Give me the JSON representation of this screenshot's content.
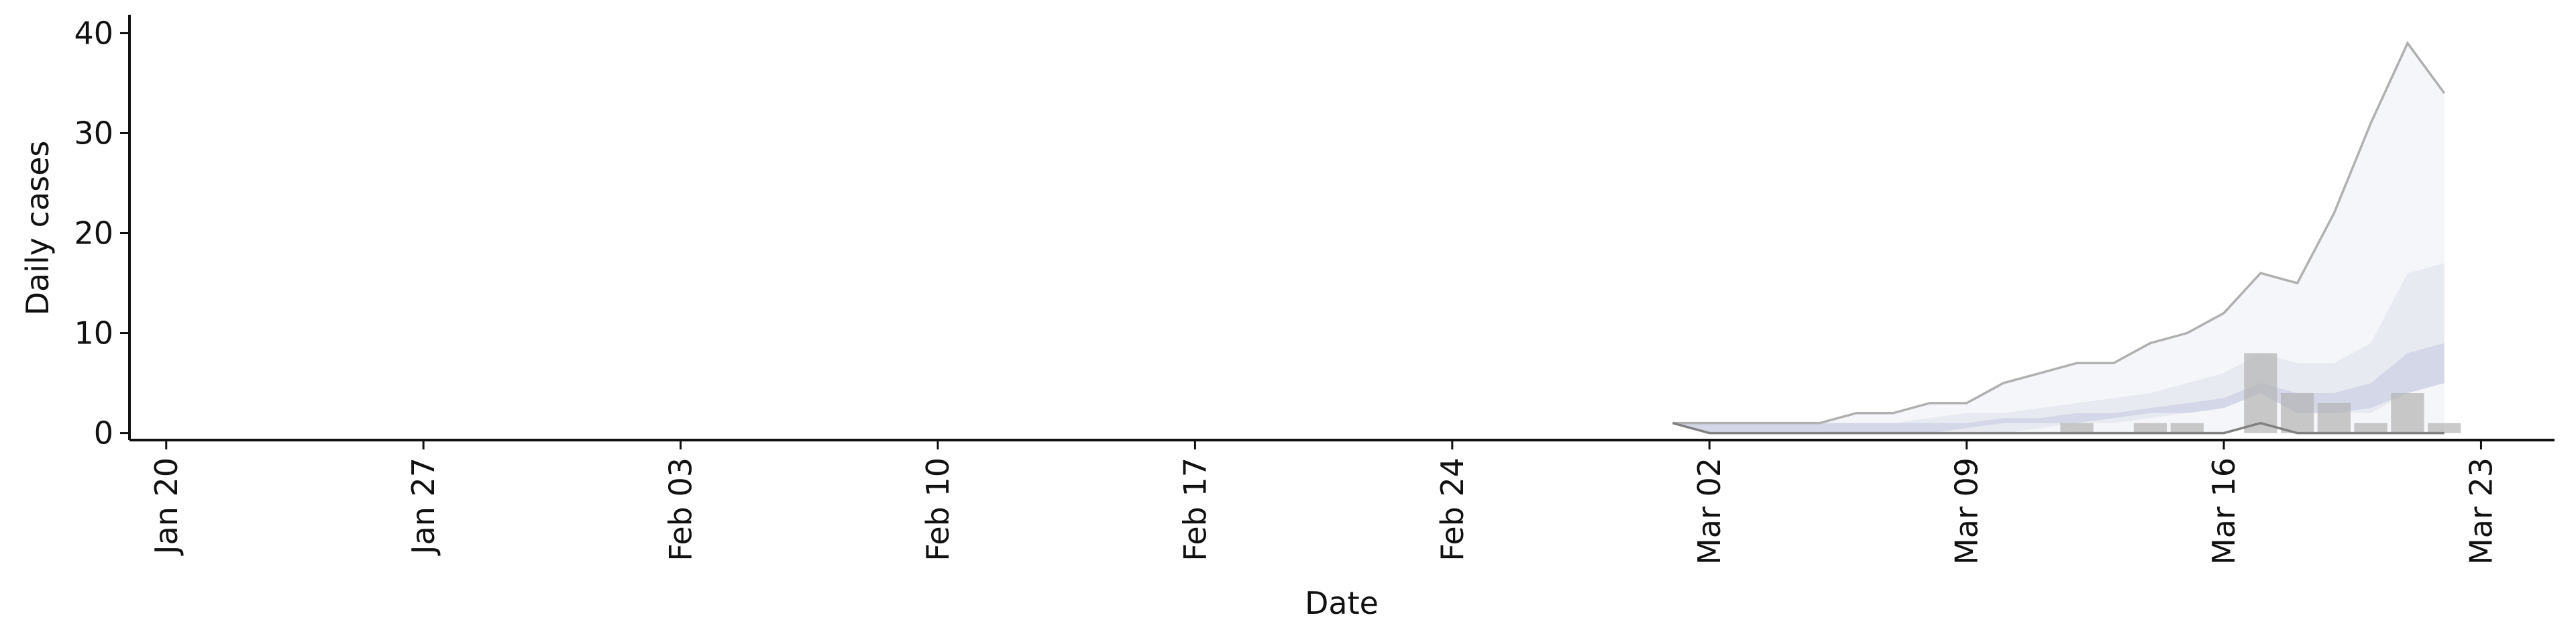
{
  "chart_data": {
    "type": "line",
    "xlabel": "Date",
    "ylabel": "Daily cases",
    "xlim": [
      "Jan 19",
      "Mar 25"
    ],
    "xticks": [
      "Jan 20",
      "Jan 27",
      "Feb 03",
      "Feb 10",
      "Feb 17",
      "Feb 24",
      "Mar 02",
      "Mar 09",
      "Mar 16",
      "Mar 23"
    ],
    "ylim": [
      -0.7,
      40.5
    ],
    "yticks": [
      0,
      10,
      20,
      30,
      40
    ],
    "x": [
      "Mar 01",
      "Mar 02",
      "Mar 03",
      "Mar 04",
      "Mar 05",
      "Mar 06",
      "Mar 07",
      "Mar 08",
      "Mar 09",
      "Mar 10",
      "Mar 11",
      "Mar 12",
      "Mar 13",
      "Mar 14",
      "Mar 15",
      "Mar 16",
      "Mar 17",
      "Mar 18",
      "Mar 19",
      "Mar 20",
      "Mar 21",
      "Mar 22"
    ],
    "bands": [
      {
        "color": "#f5f6f9",
        "edge_colors": [
          "#b0b0b0",
          "#808080"
        ],
        "upper": [
          1,
          1,
          1,
          1,
          1,
          2,
          2,
          3,
          3,
          5,
          6,
          7,
          7,
          9,
          10,
          12,
          16,
          15,
          22,
          31,
          39,
          34
        ],
        "lower": [
          1,
          0,
          0,
          0,
          0,
          0,
          0,
          0,
          0,
          0,
          0,
          0,
          0,
          0,
          0,
          0,
          1,
          0,
          0,
          0,
          0,
          0
        ]
      },
      {
        "color": "#e8eaf2",
        "upper": [
          1,
          1,
          1,
          1,
          1,
          1,
          1,
          1.5,
          2,
          2,
          2.5,
          3,
          3.5,
          4,
          5,
          6,
          8,
          7,
          7,
          9,
          16,
          17
        ],
        "lower": [
          1,
          0,
          0,
          0,
          0,
          0,
          0,
          0,
          0,
          0,
          0.5,
          1,
          1,
          1.5,
          2,
          2.5,
          4,
          2,
          2,
          2,
          4,
          5
        ]
      },
      {
        "color": "#d3d7e7",
        "upper": [
          1,
          1,
          1,
          1,
          1,
          1,
          1,
          1,
          1,
          1.5,
          1.5,
          2,
          2,
          2.5,
          3,
          3.5,
          5,
          4,
          4,
          5,
          8,
          9
        ],
        "lower": [
          1,
          0,
          0,
          0,
          0,
          0,
          0,
          0,
          0.5,
          1,
          1,
          1,
          1.5,
          2,
          2,
          2.5,
          4,
          2,
          2,
          2.5,
          4,
          5
        ]
      }
    ],
    "bars": {
      "color": "#b4b4b4",
      "x": [
        "Mar 12",
        "Mar 14",
        "Mar 15",
        "Mar 17",
        "Mar 18",
        "Mar 19",
        "Mar 20",
        "Mar 21",
        "Mar 22"
      ],
      "values": [
        1,
        1,
        1,
        8,
        4,
        3,
        1,
        4,
        1
      ]
    }
  }
}
